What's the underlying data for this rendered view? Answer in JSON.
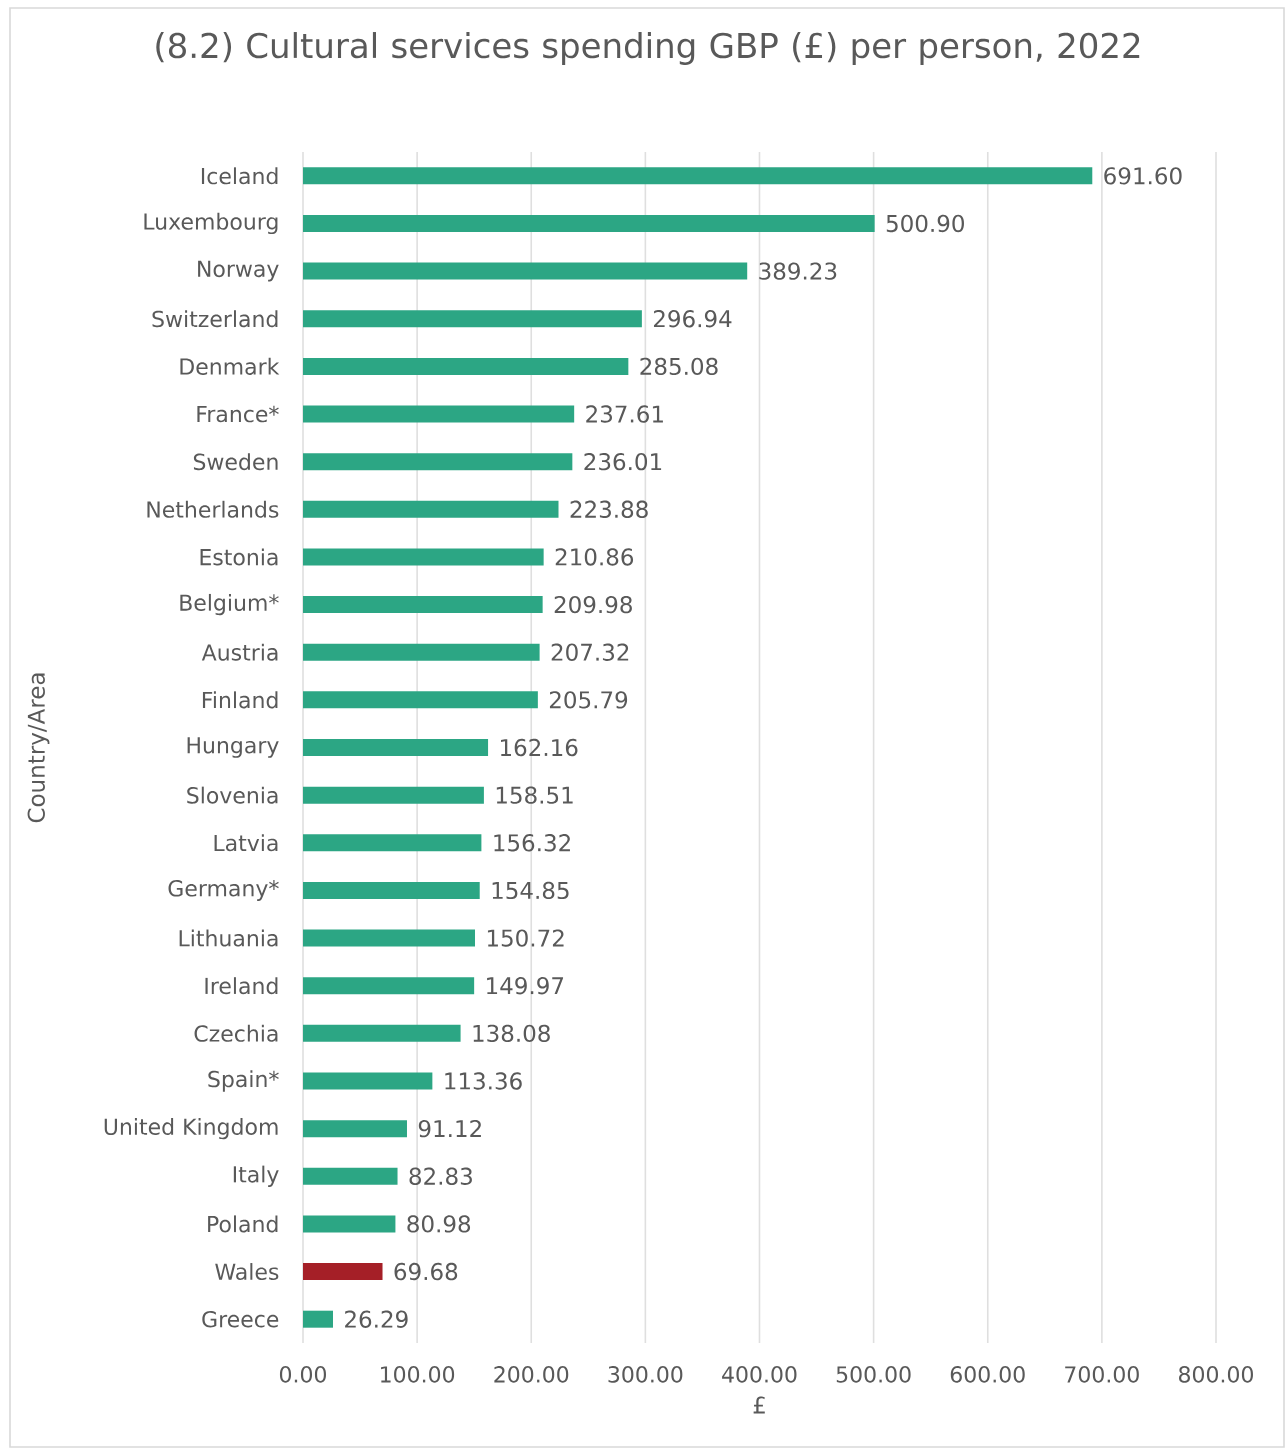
{
  "chart_data": {
    "type": "bar",
    "orientation": "horizontal",
    "title": "(8.2) Cultural services spending GBP (£) per person, 2022",
    "xlabel": "£",
    "ylabel": "Country/Area",
    "categories": [
      "Iceland",
      "Luxembourg",
      "Norway",
      "Switzerland",
      "Denmark",
      "France*",
      "Sweden",
      "Netherlands",
      "Estonia",
      "Belgium*",
      "Austria",
      "Finland",
      "Hungary",
      "Slovenia",
      "Latvia",
      "Germany*",
      "Lithuania",
      "Ireland",
      "Czechia",
      "Spain*",
      "United Kingdom",
      "Italy",
      "Poland",
      "Wales",
      "Greece"
    ],
    "values": [
      691.6,
      500.9,
      389.23,
      296.94,
      285.08,
      237.61,
      236.01,
      223.88,
      210.86,
      209.98,
      207.32,
      205.79,
      162.16,
      158.51,
      156.32,
      154.85,
      150.72,
      149.97,
      138.08,
      113.36,
      91.12,
      82.83,
      80.98,
      69.68,
      26.29
    ],
    "value_labels": [
      "691.60",
      "500.90",
      "389.23",
      "296.94",
      "285.08",
      "237.61",
      "236.01",
      "223.88",
      "210.86",
      "209.98",
      "207.32",
      "205.79",
      "162.16",
      "158.51",
      "156.32",
      "154.85",
      "150.72",
      "149.97",
      "138.08",
      "113.36",
      "91.12",
      "82.83",
      "80.98",
      "69.68",
      "26.29"
    ],
    "colors": [
      "#2ca684",
      "#2ca684",
      "#2ca684",
      "#2ca684",
      "#2ca684",
      "#2ca684",
      "#2ca684",
      "#2ca684",
      "#2ca684",
      "#2ca684",
      "#2ca684",
      "#2ca684",
      "#2ca684",
      "#2ca684",
      "#2ca684",
      "#2ca684",
      "#2ca684",
      "#2ca684",
      "#2ca684",
      "#2ca684",
      "#2ca684",
      "#2ca684",
      "#2ca684",
      "#a51f27",
      "#2ca684"
    ],
    "xlim": [
      0,
      800
    ],
    "xticks": [
      {
        "value": 0,
        "label": "0.00"
      },
      {
        "value": 100,
        "label": "100.00"
      },
      {
        "value": 200,
        "label": "200.00"
      },
      {
        "value": 300,
        "label": "300.00"
      },
      {
        "value": 400,
        "label": "400.00"
      },
      {
        "value": 500,
        "label": "500.00"
      },
      {
        "value": 600,
        "label": "600.00"
      },
      {
        "value": 700,
        "label": "700.00"
      },
      {
        "value": 800,
        "label": "800.00"
      }
    ],
    "grid": "x"
  }
}
